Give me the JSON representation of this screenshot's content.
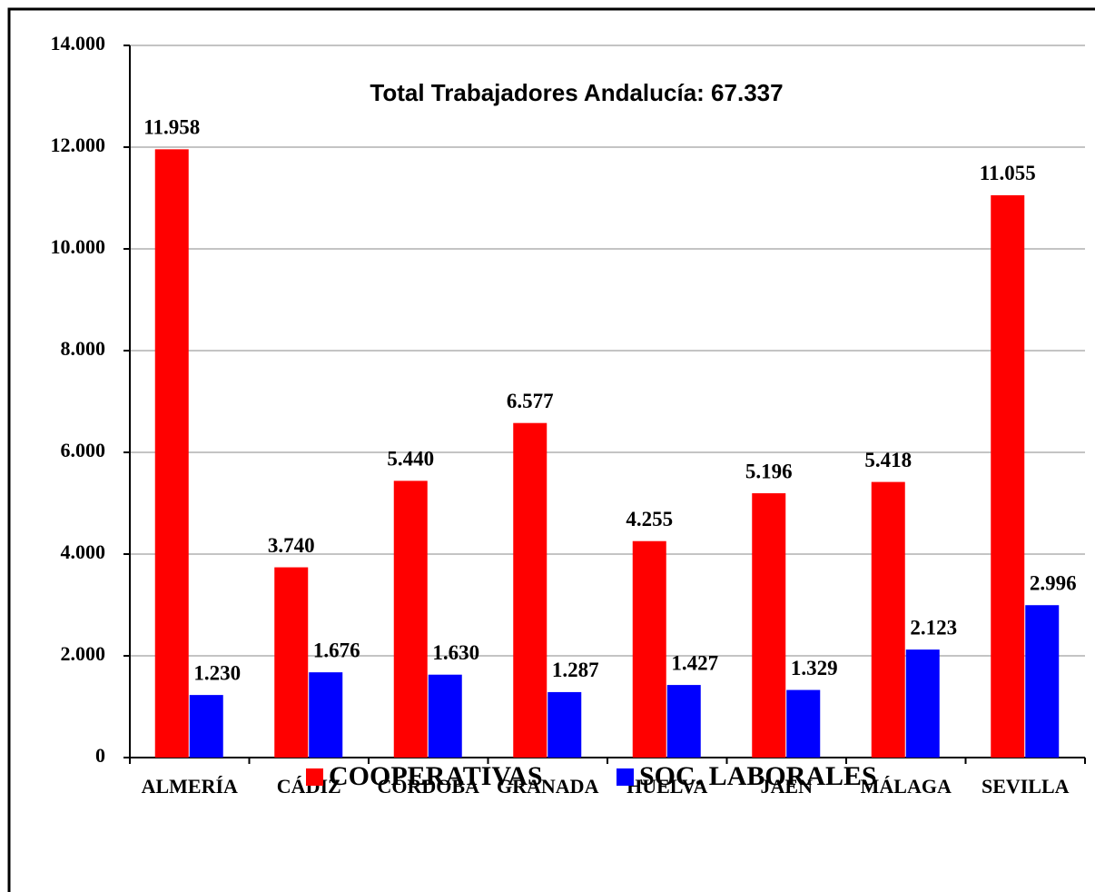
{
  "chart_data": {
    "type": "bar",
    "title": "Total Trabajadores Andalucía: 67.337",
    "categories": [
      "ALMERÍA",
      "CÁDIZ",
      "CÓRDOBA",
      "GRANADA",
      "HUELVA",
      "JAÉN",
      "MÁLAGA",
      "SEVILLA"
    ],
    "series": [
      {
        "name": "COOPERATIVAS",
        "color": "#ff0000",
        "values": [
          11958,
          3740,
          5440,
          6577,
          4255,
          5196,
          5418,
          11055
        ],
        "value_labels": [
          "11.958",
          "3.740",
          "5.440",
          "6.577",
          "4.255",
          "5.196",
          "5.418",
          "11.055"
        ]
      },
      {
        "name": "SOC. LABORALES",
        "color": "#0000ff",
        "values": [
          1230,
          1676,
          1630,
          1287,
          1427,
          1329,
          2123,
          2996
        ],
        "value_labels": [
          "1.230",
          "1.676",
          "1.630",
          "1.287",
          "1.427",
          "1.329",
          "2.123",
          "2.996"
        ]
      }
    ],
    "ylim": [
      0,
      14000
    ],
    "yticks": [
      0,
      {
        "value": 2000,
        "label": "2.000"
      },
      {
        "value": 4000,
        "label": "4.000"
      },
      {
        "value": 6000,
        "label": "6.000"
      },
      {
        "value": 8000,
        "label": "8.000"
      },
      {
        "value": 10000,
        "label": "10.000"
      },
      {
        "value": 12000,
        "label": "12.000"
      },
      {
        "value": 14000,
        "label": "14.000"
      }
    ],
    "grid": true,
    "legend": "bottom"
  }
}
